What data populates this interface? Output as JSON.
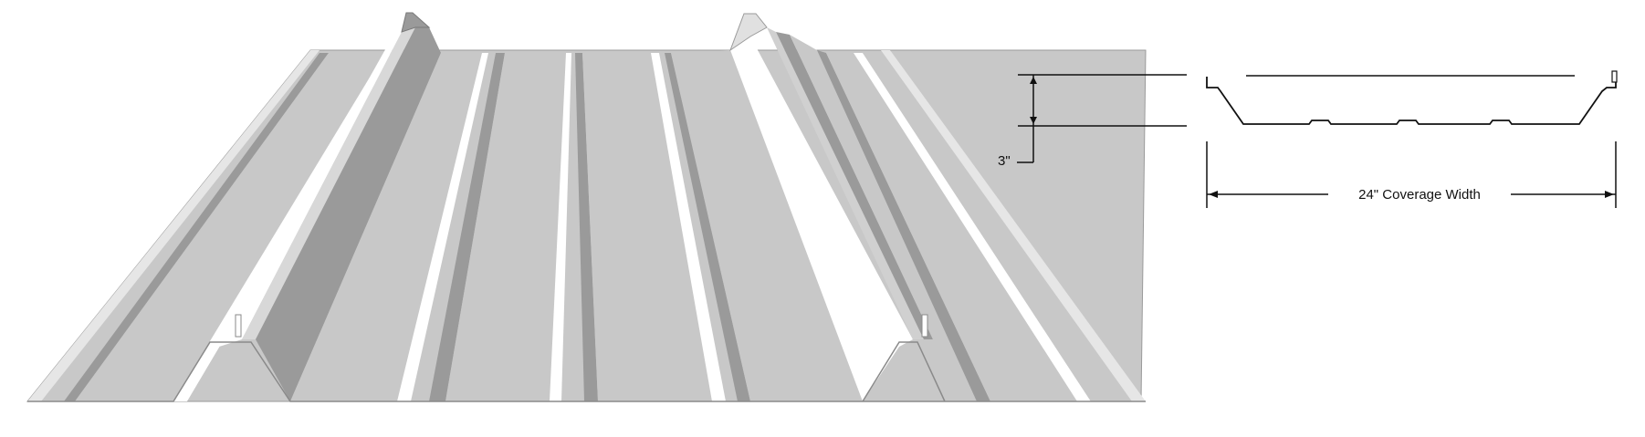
{
  "diagram": {
    "height_label": "3\"",
    "coverage_label": "24\" Coverage Width"
  },
  "colors": {
    "panel_light": "#c8c8c8",
    "panel_dark": "#9a9a9a",
    "panel_mid": "#b4b4b4",
    "highlight": "#ffffff",
    "line": "#111111"
  }
}
